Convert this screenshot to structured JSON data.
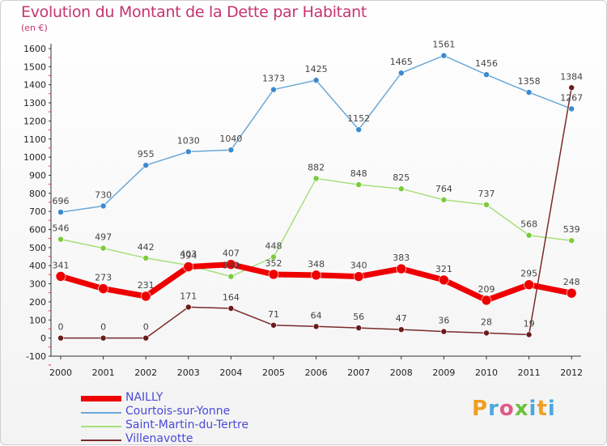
{
  "header": {
    "title": "Evolution du Montant de la Dette par Habitant",
    "unit": "(en €)"
  },
  "brand": {
    "text": "Proxiti",
    "colors": [
      "#f0a020",
      "#4aa8e0",
      "#e05a8a",
      "#6cc040",
      "#4aa8e0",
      "#f0a020",
      "#4aa8e0"
    ]
  },
  "colors": {
    "title": "#c8336e",
    "legend_text": "#4a4ad8"
  },
  "chart_data": {
    "type": "line",
    "title": "Evolution du Montant de la Dette par Habitant",
    "subtitle": "(en €)",
    "x": [
      "2000",
      "2001",
      "2002",
      "2003",
      "2004",
      "2005",
      "2006",
      "2007",
      "2008",
      "2009",
      "2010",
      "2011",
      "2012"
    ],
    "ylim": [
      -100,
      1600
    ],
    "yticks": [
      -100,
      0,
      100,
      200,
      300,
      400,
      500,
      600,
      700,
      800,
      900,
      1000,
      1100,
      1200,
      1300,
      1400,
      1500,
      1600
    ],
    "grid": false,
    "legend_position": "bottom-left",
    "series": [
      {
        "name": "NAILLY",
        "color": "#ee0000",
        "point_color": "#ee0000",
        "width": 7,
        "values": [
          341,
          273,
          231,
          394,
          407,
          352,
          348,
          340,
          383,
          321,
          209,
          295,
          248
        ]
      },
      {
        "name": "Courtois-sur-Yonne",
        "color": "#6aa8d8",
        "point_color": "#3a8ad0",
        "width": 1.5,
        "values": [
          696,
          730,
          955,
          1030,
          1040,
          1373,
          1425,
          1152,
          1465,
          1561,
          1456,
          1358,
          1267
        ]
      },
      {
        "name": "Saint-Martin-du-Tertre",
        "color": "#a6e07a",
        "point_color": "#7acc3a",
        "width": 1.5,
        "values": [
          546,
          497,
          442,
          403,
          340,
          448,
          882,
          848,
          825,
          764,
          737,
          568,
          539
        ]
      },
      {
        "name": "Villenavotte",
        "color": "#7a2a2a",
        "point_color": "#6a1a1a",
        "width": 1.5,
        "values": [
          0,
          0,
          0,
          171,
          164,
          71,
          64,
          56,
          47,
          36,
          28,
          19,
          1384
        ]
      }
    ]
  }
}
